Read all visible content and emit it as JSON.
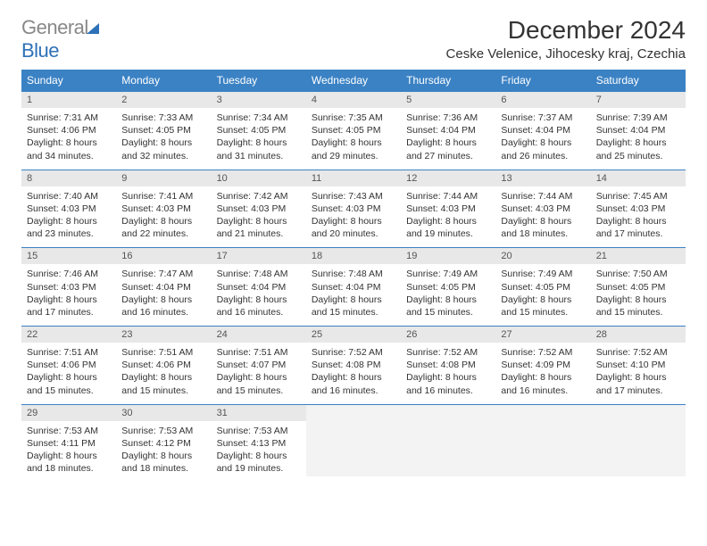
{
  "brand": {
    "part1": "General",
    "part2": "Blue"
  },
  "title": "December 2024",
  "location": "Ceske Velenice, Jihocesky kraj, Czechia",
  "colors": {
    "header_bg": "#3b82c4",
    "header_fg": "#ffffff",
    "daynum_bg": "#e8e8e8",
    "border": "#3b82c4",
    "logo_gray": "#888888",
    "logo_blue": "#2d71b8",
    "text": "#333333",
    "background": "#ffffff"
  },
  "typography": {
    "title_fontsize": 28,
    "location_fontsize": 15,
    "dayheader_fontsize": 12,
    "body_fontsize": 10.5
  },
  "day_headers": [
    "Sunday",
    "Monday",
    "Tuesday",
    "Wednesday",
    "Thursday",
    "Friday",
    "Saturday"
  ],
  "weeks": [
    [
      {
        "n": "1",
        "sr": "7:31 AM",
        "ss": "4:06 PM",
        "dl": "8 hours and 34 minutes."
      },
      {
        "n": "2",
        "sr": "7:33 AM",
        "ss": "4:05 PM",
        "dl": "8 hours and 32 minutes."
      },
      {
        "n": "3",
        "sr": "7:34 AM",
        "ss": "4:05 PM",
        "dl": "8 hours and 31 minutes."
      },
      {
        "n": "4",
        "sr": "7:35 AM",
        "ss": "4:05 PM",
        "dl": "8 hours and 29 minutes."
      },
      {
        "n": "5",
        "sr": "7:36 AM",
        "ss": "4:04 PM",
        "dl": "8 hours and 27 minutes."
      },
      {
        "n": "6",
        "sr": "7:37 AM",
        "ss": "4:04 PM",
        "dl": "8 hours and 26 minutes."
      },
      {
        "n": "7",
        "sr": "7:39 AM",
        "ss": "4:04 PM",
        "dl": "8 hours and 25 minutes."
      }
    ],
    [
      {
        "n": "8",
        "sr": "7:40 AM",
        "ss": "4:03 PM",
        "dl": "8 hours and 23 minutes."
      },
      {
        "n": "9",
        "sr": "7:41 AM",
        "ss": "4:03 PM",
        "dl": "8 hours and 22 minutes."
      },
      {
        "n": "10",
        "sr": "7:42 AM",
        "ss": "4:03 PM",
        "dl": "8 hours and 21 minutes."
      },
      {
        "n": "11",
        "sr": "7:43 AM",
        "ss": "4:03 PM",
        "dl": "8 hours and 20 minutes."
      },
      {
        "n": "12",
        "sr": "7:44 AM",
        "ss": "4:03 PM",
        "dl": "8 hours and 19 minutes."
      },
      {
        "n": "13",
        "sr": "7:44 AM",
        "ss": "4:03 PM",
        "dl": "8 hours and 18 minutes."
      },
      {
        "n": "14",
        "sr": "7:45 AM",
        "ss": "4:03 PM",
        "dl": "8 hours and 17 minutes."
      }
    ],
    [
      {
        "n": "15",
        "sr": "7:46 AM",
        "ss": "4:03 PM",
        "dl": "8 hours and 17 minutes."
      },
      {
        "n": "16",
        "sr": "7:47 AM",
        "ss": "4:04 PM",
        "dl": "8 hours and 16 minutes."
      },
      {
        "n": "17",
        "sr": "7:48 AM",
        "ss": "4:04 PM",
        "dl": "8 hours and 16 minutes."
      },
      {
        "n": "18",
        "sr": "7:48 AM",
        "ss": "4:04 PM",
        "dl": "8 hours and 15 minutes."
      },
      {
        "n": "19",
        "sr": "7:49 AM",
        "ss": "4:05 PM",
        "dl": "8 hours and 15 minutes."
      },
      {
        "n": "20",
        "sr": "7:49 AM",
        "ss": "4:05 PM",
        "dl": "8 hours and 15 minutes."
      },
      {
        "n": "21",
        "sr": "7:50 AM",
        "ss": "4:05 PM",
        "dl": "8 hours and 15 minutes."
      }
    ],
    [
      {
        "n": "22",
        "sr": "7:51 AM",
        "ss": "4:06 PM",
        "dl": "8 hours and 15 minutes."
      },
      {
        "n": "23",
        "sr": "7:51 AM",
        "ss": "4:06 PM",
        "dl": "8 hours and 15 minutes."
      },
      {
        "n": "24",
        "sr": "7:51 AM",
        "ss": "4:07 PM",
        "dl": "8 hours and 15 minutes."
      },
      {
        "n": "25",
        "sr": "7:52 AM",
        "ss": "4:08 PM",
        "dl": "8 hours and 16 minutes."
      },
      {
        "n": "26",
        "sr": "7:52 AM",
        "ss": "4:08 PM",
        "dl": "8 hours and 16 minutes."
      },
      {
        "n": "27",
        "sr": "7:52 AM",
        "ss": "4:09 PM",
        "dl": "8 hours and 16 minutes."
      },
      {
        "n": "28",
        "sr": "7:52 AM",
        "ss": "4:10 PM",
        "dl": "8 hours and 17 minutes."
      }
    ],
    [
      {
        "n": "29",
        "sr": "7:53 AM",
        "ss": "4:11 PM",
        "dl": "8 hours and 18 minutes."
      },
      {
        "n": "30",
        "sr": "7:53 AM",
        "ss": "4:12 PM",
        "dl": "8 hours and 18 minutes."
      },
      {
        "n": "31",
        "sr": "7:53 AM",
        "ss": "4:13 PM",
        "dl": "8 hours and 19 minutes."
      },
      null,
      null,
      null,
      null
    ]
  ],
  "labels": {
    "sunrise": "Sunrise:",
    "sunset": "Sunset:",
    "daylight": "Daylight:"
  }
}
